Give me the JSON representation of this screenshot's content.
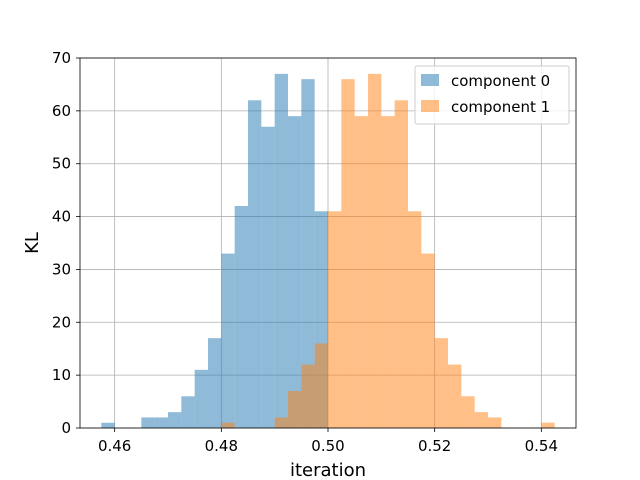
{
  "chart_data": {
    "type": "bar",
    "subtype": "histogram",
    "xlabel": "iteration",
    "ylabel": "KL",
    "xlim": [
      0.4535,
      0.5465
    ],
    "ylim": [
      0,
      70
    ],
    "xticks": [
      0.46,
      0.48,
      0.5,
      0.52,
      0.54
    ],
    "xtick_labels": [
      "0.46",
      "0.48",
      "0.50",
      "0.52",
      "0.54"
    ],
    "yticks": [
      0,
      10,
      20,
      30,
      40,
      50,
      60,
      70
    ],
    "ytick_labels": [
      "0",
      "10",
      "20",
      "30",
      "40",
      "50",
      "60",
      "70"
    ],
    "grid": true,
    "legend_position": "top-right",
    "bin_width": 0.0025,
    "series": [
      {
        "name": "component 0",
        "color": "#1f77b4",
        "alpha": 0.5,
        "bins_start": [
          0.4575,
          0.465,
          0.4675,
          0.47,
          0.4725,
          0.475,
          0.4775,
          0.48,
          0.4825,
          0.485,
          0.4875,
          0.49,
          0.4925,
          0.495,
          0.4975
        ],
        "counts": [
          1,
          2,
          2,
          3,
          6,
          11,
          17,
          33,
          42,
          62,
          57,
          67,
          59,
          66,
          41
        ]
      },
      {
        "name": "component 1",
        "color": "#ff7f0e",
        "alpha": 0.5,
        "bins_start": [
          0.48,
          0.49,
          0.4925,
          0.495,
          0.4975,
          0.5,
          0.5025,
          0.505,
          0.5075,
          0.51,
          0.5125,
          0.515,
          0.5175,
          0.52,
          0.5225,
          0.525,
          0.5275,
          0.53,
          0.54
        ],
        "counts": [
          1,
          2,
          7,
          12,
          16,
          41,
          66,
          59,
          67,
          59,
          62,
          41,
          33,
          17,
          12,
          6,
          3,
          2,
          1
        ]
      }
    ]
  }
}
